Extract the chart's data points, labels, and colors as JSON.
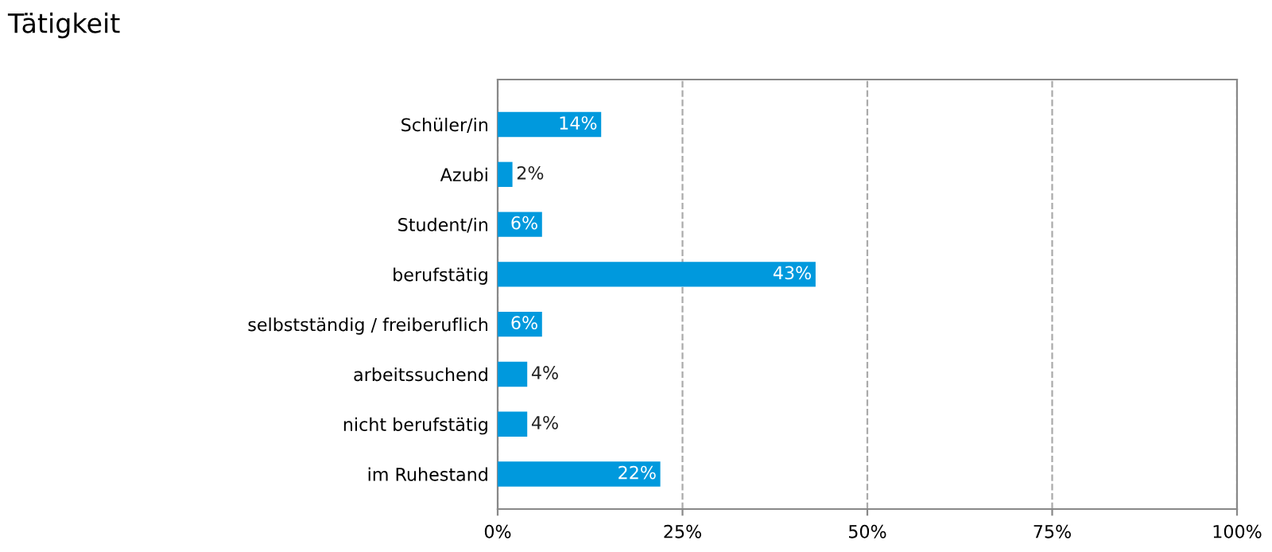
{
  "chart_data": {
    "type": "bar",
    "orientation": "horizontal",
    "title": "Tätigkeit",
    "categories": [
      "Schüler/in",
      "Azubi",
      "Student/in",
      "berufstätig",
      "selbstständig / freiberuflich",
      "arbeitssuchend",
      "nicht berufstätig",
      "im Ruhestand"
    ],
    "values": [
      14,
      2,
      6,
      43,
      6,
      4,
      4,
      22
    ],
    "value_labels": [
      "14%",
      "2%",
      "6%",
      "43%",
      "6%",
      "4%",
      "4%",
      "22%"
    ],
    "color": "#0099dd",
    "xlim": [
      0,
      100
    ],
    "xticks": [
      {
        "value": 0,
        "label": "0%"
      },
      {
        "value": 25,
        "label": "25%"
      },
      {
        "value": 50,
        "label": "50%"
      },
      {
        "value": 75,
        "label": "75%"
      },
      {
        "value": 100,
        "label": "100%"
      }
    ],
    "grid": "x"
  }
}
